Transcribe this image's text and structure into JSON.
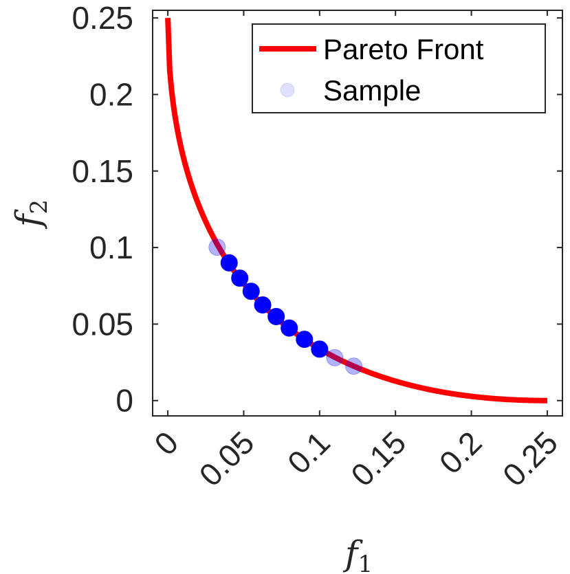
{
  "chart_data": {
    "type": "scatter",
    "title": "",
    "xlabel": {
      "main": "f",
      "sub": "1"
    },
    "ylabel": {
      "main": "f",
      "sub": "2"
    },
    "xlim": [
      -0.01,
      0.26
    ],
    "ylim": [
      -0.01,
      0.255
    ],
    "xticks": [
      0,
      0.05,
      0.1,
      0.15,
      0.2,
      0.25
    ],
    "xtick_labels": [
      "0",
      "0.05",
      "0.1",
      "0.15",
      "0.2",
      "0.25"
    ],
    "yticks": [
      0,
      0.05,
      0.1,
      0.15,
      0.2,
      0.25
    ],
    "ytick_labels": [
      "0",
      "0.05",
      "0.1",
      "0.15",
      "0.2",
      "0.25"
    ],
    "grid": false,
    "legend": {
      "placement": "top-right",
      "entries": [
        {
          "label": "Pareto Front",
          "kind": "line",
          "color": "#ff0000"
        },
        {
          "label": "Sample",
          "kind": "marker",
          "color": "#0000ff"
        }
      ]
    },
    "series": [
      {
        "name": "Pareto Front",
        "kind": "line",
        "color": "#ff0000",
        "x_range": [
          0,
          0.25
        ],
        "curve": "f2 = (0.5 - sqrt(f1))^2"
      },
      {
        "name": "Sample",
        "kind": "scatter",
        "color": "#0000ff",
        "points": [
          {
            "x": 0.0325,
            "y": 0.1002,
            "alpha": 0.3
          },
          {
            "x": 0.0404,
            "y": 0.09,
            "alpha": 1.0
          },
          {
            "x": 0.0474,
            "y": 0.08,
            "alpha": 1.0
          },
          {
            "x": 0.0549,
            "y": 0.0714,
            "alpha": 1.0
          },
          {
            "x": 0.0625,
            "y": 0.0625,
            "alpha": 1.0
          },
          {
            "x": 0.0714,
            "y": 0.0549,
            "alpha": 1.0
          },
          {
            "x": 0.08,
            "y": 0.0474,
            "alpha": 1.0
          },
          {
            "x": 0.09,
            "y": 0.04,
            "alpha": 1.0
          },
          {
            "x": 0.1,
            "y": 0.0336,
            "alpha": 1.0
          },
          {
            "x": 0.11,
            "y": 0.028,
            "alpha": 0.3
          },
          {
            "x": 0.1225,
            "y": 0.0225,
            "alpha": 0.3
          }
        ]
      }
    ]
  }
}
